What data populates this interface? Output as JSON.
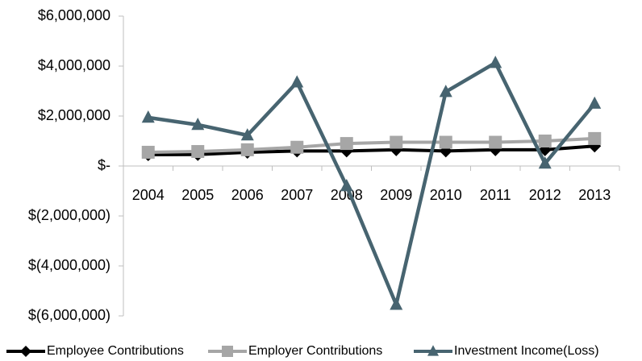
{
  "chart_data": {
    "type": "line",
    "categories": [
      "2004",
      "2005",
      "2006",
      "2007",
      "2008",
      "2009",
      "2010",
      "2011",
      "2012",
      "2013"
    ],
    "series": [
      {
        "name": "Employee Contributions",
        "color": "#000000",
        "marker": "diamond",
        "values": [
          450000,
          460000,
          550000,
          600000,
          600000,
          650000,
          600000,
          650000,
          650000,
          800000
        ]
      },
      {
        "name": "Employer Contributions",
        "color": "#a6a6a6",
        "marker": "square",
        "values": [
          550000,
          580000,
          650000,
          750000,
          900000,
          950000,
          950000,
          950000,
          1000000,
          1100000
        ]
      },
      {
        "name": "Investment Income(Loss)",
        "color": "#476470",
        "marker": "triangle",
        "values": [
          1940000,
          1650000,
          1230000,
          3350000,
          -800000,
          -5550000,
          2970000,
          4130000,
          100000,
          2500000
        ]
      }
    ],
    "ylim": [
      -6000000,
      6000000
    ],
    "yticks": [
      {
        "value": -6000000,
        "label": "$(6,000,000)"
      },
      {
        "value": -4000000,
        "label": "$(4,000,000)"
      },
      {
        "value": -2000000,
        "label": "$(2,000,000)"
      },
      {
        "value": 0,
        "label": "$-"
      },
      {
        "value": 2000000,
        "label": "$2,000,000"
      },
      {
        "value": 4000000,
        "label": "$4,000,000"
      },
      {
        "value": 6000000,
        "label": "$6,000,000"
      }
    ],
    "grid": false,
    "legend": "bottom"
  }
}
